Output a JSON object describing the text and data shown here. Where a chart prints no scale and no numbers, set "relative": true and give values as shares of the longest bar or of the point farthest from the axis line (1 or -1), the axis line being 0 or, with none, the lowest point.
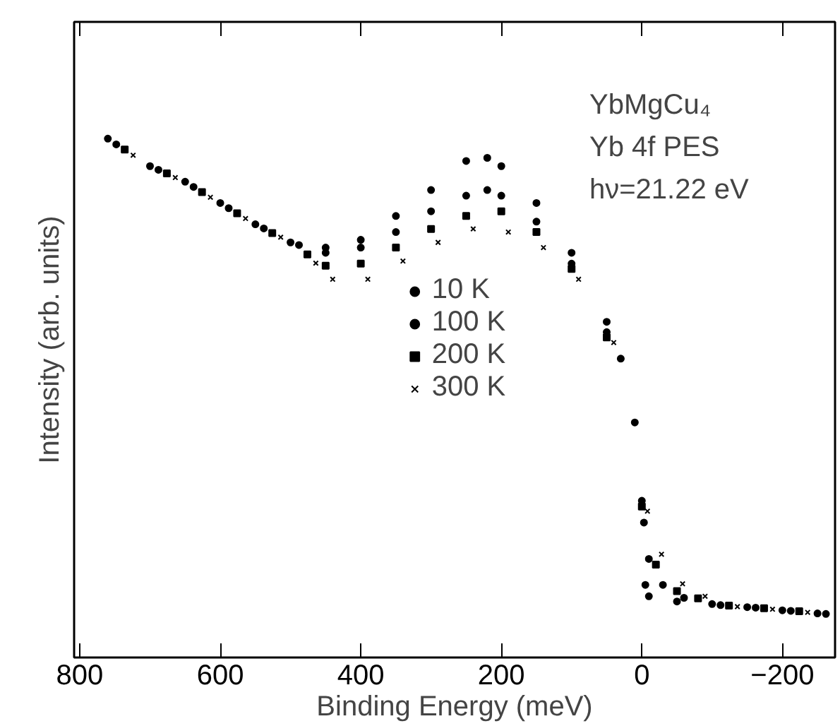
{
  "chart_data": {
    "type": "scatter",
    "relative": true,
    "xlabel": "Binding Energy (meV)",
    "ylabel": "Intensity (arb. units)",
    "annotations": [
      "YbMgCu₄",
      "Yb 4f PES",
      "hν=21.22 eV"
    ],
    "xlim": [
      808,
      -275
    ],
    "xticks": [
      800,
      600,
      400,
      200,
      0,
      -200
    ],
    "ylim": [
      0,
      1.225
    ],
    "tick_labels": "x",
    "grid": false,
    "legend": "center",
    "series": [
      {
        "name": "10 K",
        "color": "#000000",
        "marker": "circle",
        "x": [
          760,
          700,
          650,
          600,
          550,
          500,
          450,
          400,
          350,
          300,
          250,
          220,
          200,
          150,
          100,
          50,
          30,
          10,
          0,
          -5,
          -10,
          -50,
          -100,
          -150,
          -200,
          -250
        ],
        "values": [
          1.0,
          0.947,
          0.917,
          0.876,
          0.835,
          0.8,
          0.79,
          0.805,
          0.851,
          0.901,
          0.957,
          0.963,
          0.947,
          0.876,
          0.78,
          0.647,
          0.576,
          0.453,
          0.302,
          0.14,
          0.118,
          0.108,
          0.103,
          0.097,
          0.091,
          0.085
        ]
      },
      {
        "name": "100 K",
        "color": "#000000",
        "marker": "circle",
        "x": [
          748,
          688,
          638,
          588,
          538,
          488,
          450,
          400,
          350,
          300,
          250,
          220,
          200,
          150,
          100,
          50,
          -3,
          -10,
          -30,
          -60,
          -112,
          -162,
          -212,
          -262
        ],
        "values": [
          0.989,
          0.94,
          0.907,
          0.866,
          0.827,
          0.795,
          0.78,
          0.79,
          0.82,
          0.86,
          0.89,
          0.901,
          0.89,
          0.84,
          0.759,
          0.627,
          0.26,
          0.19,
          0.14,
          0.115,
          0.101,
          0.096,
          0.09,
          0.084
        ]
      },
      {
        "name": "200 K",
        "color": "#000000",
        "marker": "square",
        "x": [
          736,
          676,
          626,
          576,
          526,
          476,
          450,
          400,
          350,
          300,
          250,
          200,
          150,
          100,
          50,
          0,
          -20,
          -50,
          -80,
          -124,
          -174,
          -224
        ],
        "values": [
          0.979,
          0.933,
          0.897,
          0.856,
          0.818,
          0.777,
          0.755,
          0.759,
          0.79,
          0.826,
          0.851,
          0.86,
          0.82,
          0.749,
          0.617,
          0.291,
          0.179,
          0.128,
          0.114,
          0.1,
          0.095,
          0.089
        ]
      },
      {
        "name": "300 K",
        "color": "#000000",
        "marker": "cross",
        "x": [
          724,
          664,
          614,
          564,
          514,
          464,
          440,
          390,
          340,
          290,
          240,
          190,
          140,
          90,
          40,
          -8,
          -28,
          -58,
          -90,
          -136,
          -186,
          -236
        ],
        "values": [
          0.968,
          0.925,
          0.887,
          0.846,
          0.81,
          0.76,
          0.729,
          0.729,
          0.764,
          0.8,
          0.826,
          0.82,
          0.79,
          0.729,
          0.607,
          0.282,
          0.199,
          0.142,
          0.118,
          0.098,
          0.093,
          0.087
        ]
      }
    ]
  }
}
